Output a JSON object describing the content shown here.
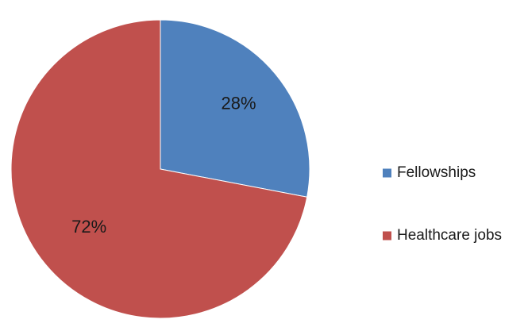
{
  "chart_data": {
    "type": "pie",
    "title": "",
    "series": [
      {
        "values": [
          28,
          72
        ],
        "labels": [
          "28%",
          "72%"
        ]
      }
    ],
    "categories": [
      "Fellowships",
      "Healthcare jobs"
    ],
    "colors": [
      "#4f81bd",
      "#c0504d"
    ],
    "legend_position": "right"
  }
}
